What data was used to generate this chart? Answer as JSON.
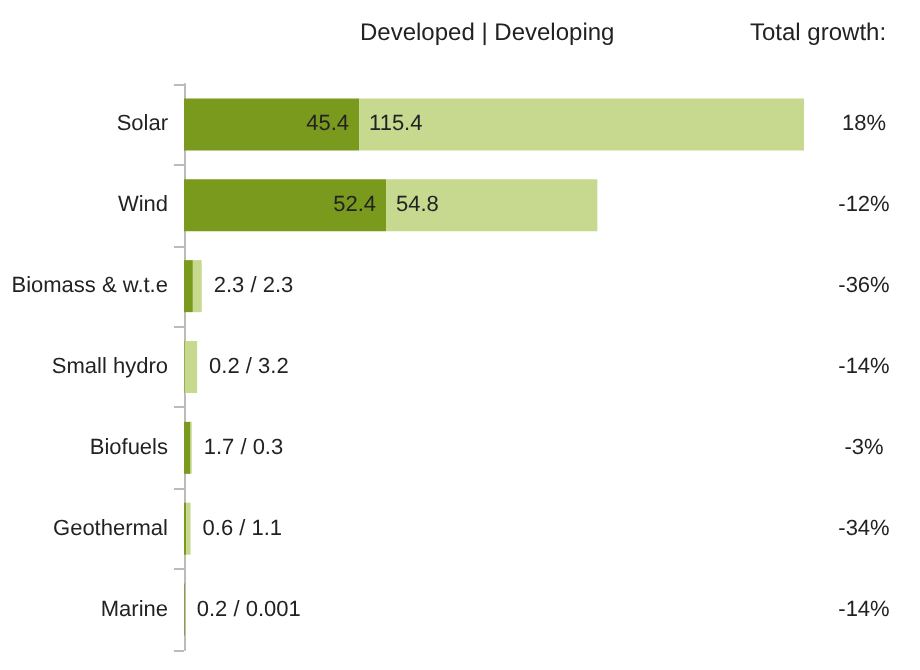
{
  "chart_data": {
    "type": "bar",
    "orientation": "horizontal",
    "stacked": true,
    "categories": [
      "Solar",
      "Wind",
      "Biomass & w.t.e",
      "Small hydro",
      "Biofuels",
      "Geothermal",
      "Marine"
    ],
    "series": [
      {
        "color": "#7a9a1e",
        "values": [
          45.4,
          52.4,
          2.3,
          0.2,
          1.7,
          0.6,
          0.2
        ],
        "value_labels": [
          "45.4",
          "52.4",
          null,
          null,
          null,
          null,
          null
        ]
      },
      {
        "color": "#c6d98f",
        "values": [
          115.4,
          54.8,
          2.3,
          3.2,
          0.3,
          1.1,
          0.001
        ],
        "value_labels": [
          "115.4",
          "54.8",
          null,
          null,
          null,
          null,
          null
        ]
      }
    ],
    "annotations": [
      {
        "text": "2.3 / 2.3",
        "x": 4.6,
        "y": "Biomass & w.t.e"
      },
      {
        "text": "0.2 / 3.2",
        "x": 3.4,
        "y": "Small hydro"
      },
      {
        "text": "1.7 / 0.3",
        "x": 2.0,
        "y": "Biofuels"
      },
      {
        "text": "0.6 / 1.1",
        "x": 1.7,
        "y": "Geothermal"
      },
      {
        "text": "0.2 / 0.001",
        "x": 0.201,
        "y": "Marine"
      },
      "Developed | Developing",
      "Total growth:",
      "18%",
      "-12%",
      "-36%",
      "-14%",
      "-3%",
      "-34%",
      "-14%"
    ]
  }
}
